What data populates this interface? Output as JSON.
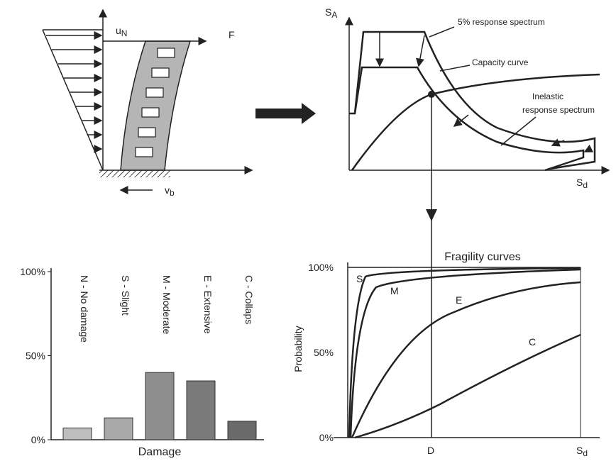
{
  "building": {
    "displacement": {
      "symbol": "u",
      "subscript": "N"
    },
    "force": "F",
    "base_shear": {
      "symbol": "v",
      "subscript": "b"
    }
  },
  "spectrum": {
    "y_axis": {
      "symbol": "S",
      "subscript": "A"
    },
    "x_axis": {
      "symbol": "S",
      "subscript": "d"
    },
    "labels": [
      "5% response spectrum",
      "Capacity curve",
      "Inelastic",
      "response spectrum"
    ]
  },
  "fragility": {
    "title": "Fragility curves",
    "ylabel": "Probability",
    "yticks": [
      "100%",
      "50%",
      "0%"
    ],
    "curves": [
      "S",
      "M",
      "E",
      "C"
    ],
    "marker": "D",
    "x_axis": {
      "symbol": "S",
      "subscript": "d"
    }
  },
  "damage_chart": {
    "type": "bar",
    "xlabel": "Damage",
    "categories": [
      "N - No damage",
      "S - Slight",
      "M - Moderate",
      "E - Extensive",
      "C - Collaps"
    ],
    "values": [
      7,
      13,
      40,
      35,
      11
    ],
    "colors": [
      "#bdbdbd",
      "#a8a8a8",
      "#8e8e8e",
      "#7a7a7a",
      "#6a6a6a"
    ],
    "ylim": [
      0,
      100
    ],
    "yticks": [
      {
        "value": 0,
        "label": "0%"
      },
      {
        "value": 50,
        "label": "50%"
      },
      {
        "value": 100,
        "label": "100%"
      }
    ]
  }
}
